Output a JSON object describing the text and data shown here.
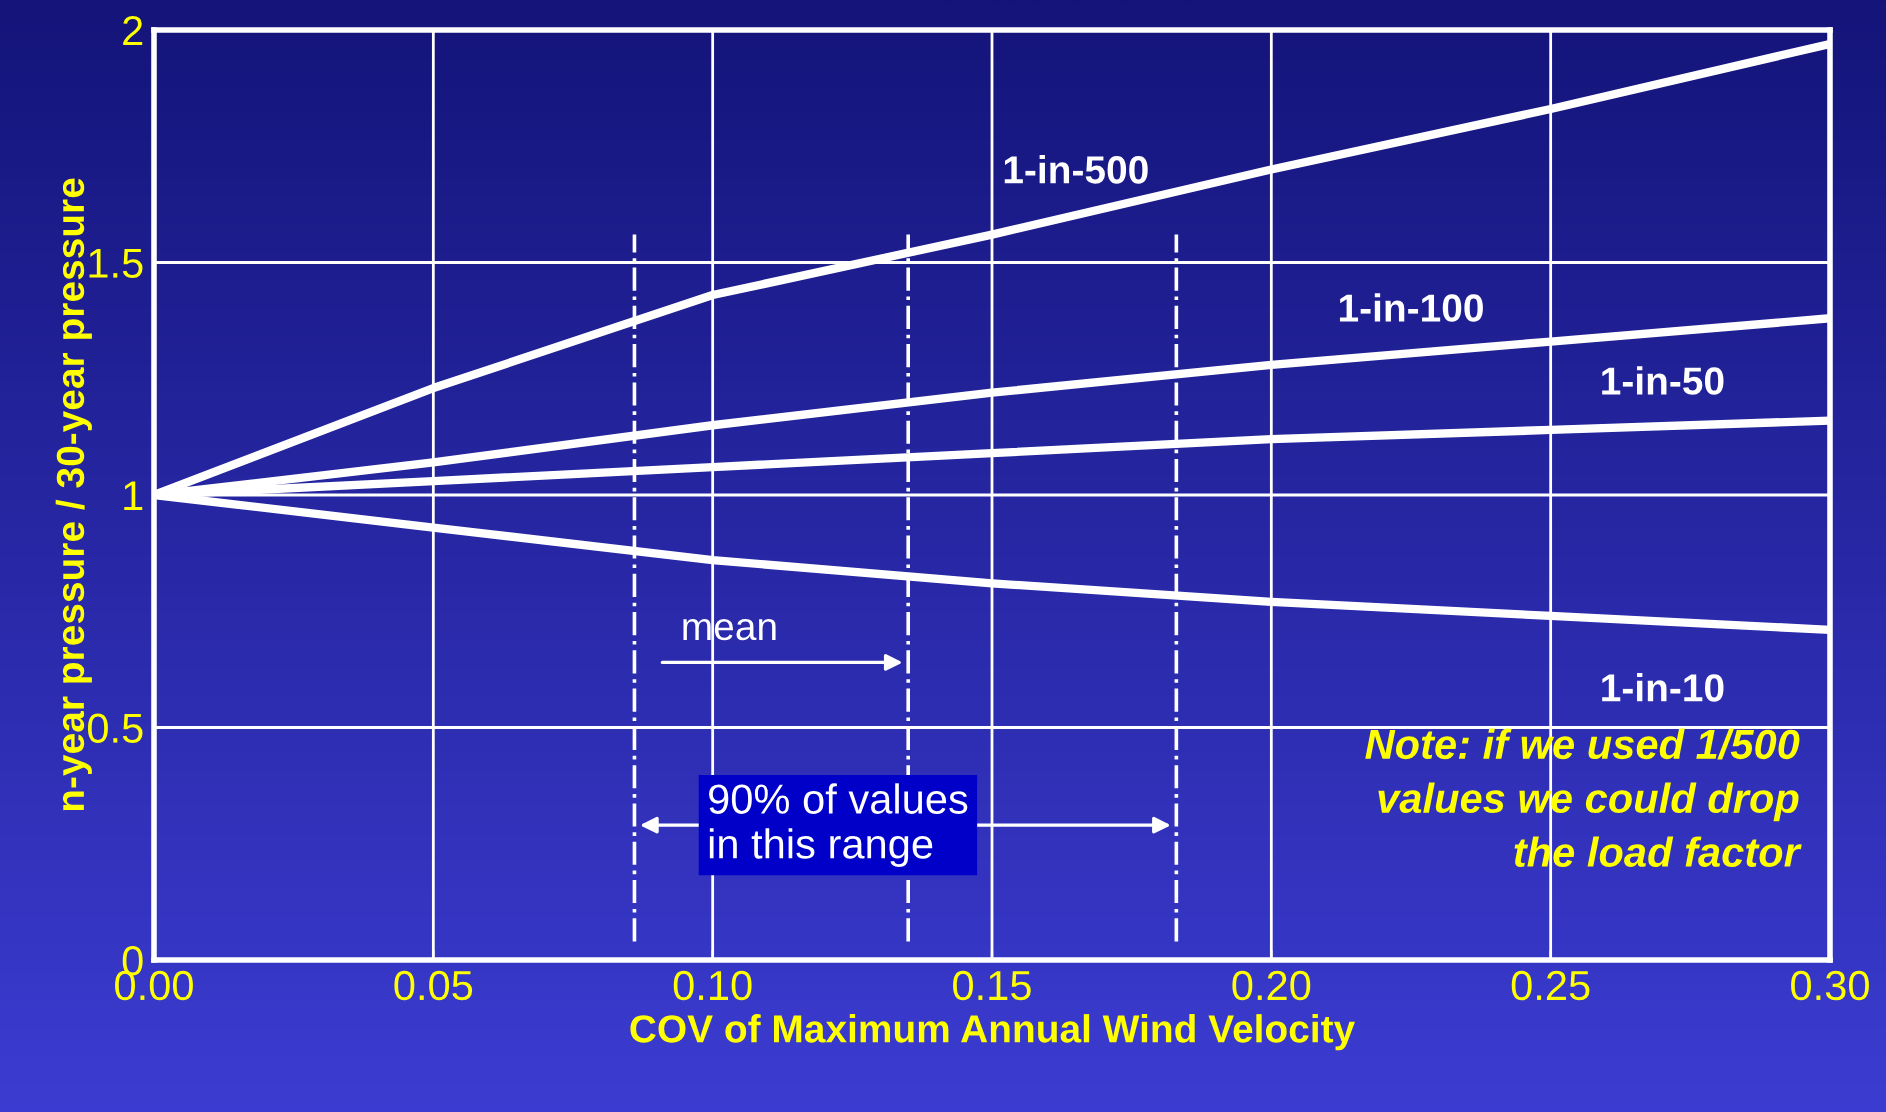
{
  "chart_data": {
    "type": "line",
    "xlabel": "COV of Maximum Annual Wind Velocity",
    "ylabel": "n-year pressure / 30-year pressure",
    "x": [
      0,
      0.05,
      0.1,
      0.15,
      0.2,
      0.25,
      0.3
    ],
    "series": [
      {
        "name": "1-in-500",
        "color": "#ffffff",
        "values": [
          1,
          1.23,
          1.43,
          1.56,
          1.7,
          1.83,
          1.97
        ]
      },
      {
        "name": "1-in-100",
        "color": "#ffffff",
        "values": [
          1,
          1.07,
          1.15,
          1.22,
          1.28,
          1.33,
          1.38
        ]
      },
      {
        "name": "1-in-50",
        "color": "#ffffff",
        "values": [
          1,
          1.03,
          1.06,
          1.09,
          1.12,
          1.14,
          1.16
        ]
      },
      {
        "name": "1-in-10",
        "color": "#ffffff",
        "values": [
          1,
          0.93,
          0.86,
          0.81,
          0.77,
          0.74,
          0.71
        ]
      }
    ],
    "xlim": [
      0,
      0.3
    ],
    "ylim": [
      0,
      2
    ],
    "xticks": [
      {
        "value": 0,
        "label": "0.00"
      },
      {
        "value": 0.05,
        "label": "0.05"
      },
      {
        "value": 0.1,
        "label": "0.10"
      },
      {
        "value": 0.15,
        "label": "0.15"
      },
      {
        "value": 0.2,
        "label": "0.20"
      },
      {
        "value": 0.25,
        "label": "0.25"
      },
      {
        "value": 0.3,
        "label": "0.30"
      }
    ],
    "yticks": [
      0,
      0.5,
      1,
      1.5,
      2
    ],
    "ref_lines": [
      {
        "axis": "x",
        "value": 0.086,
        "color": "#ffffff",
        "line_style": "dashed"
      },
      {
        "axis": "x",
        "value": 0.135,
        "color": "#ffffff",
        "line_style": "dashed"
      },
      {
        "axis": "x",
        "value": 0.183,
        "color": "#ffffff",
        "line_style": "dashed"
      }
    ],
    "annotations": [
      {
        "text": "mean",
        "x": 0.135,
        "y": 0.64
      },
      {
        "text": "90% of values\nin this range",
        "x": 0.135,
        "y": 0.29
      },
      "Note: if we used 1/500\nvalues we could drop\nthe load factor"
    ],
    "grid": true,
    "legend": false,
    "line_style": "solid",
    "marker": "none"
  }
}
